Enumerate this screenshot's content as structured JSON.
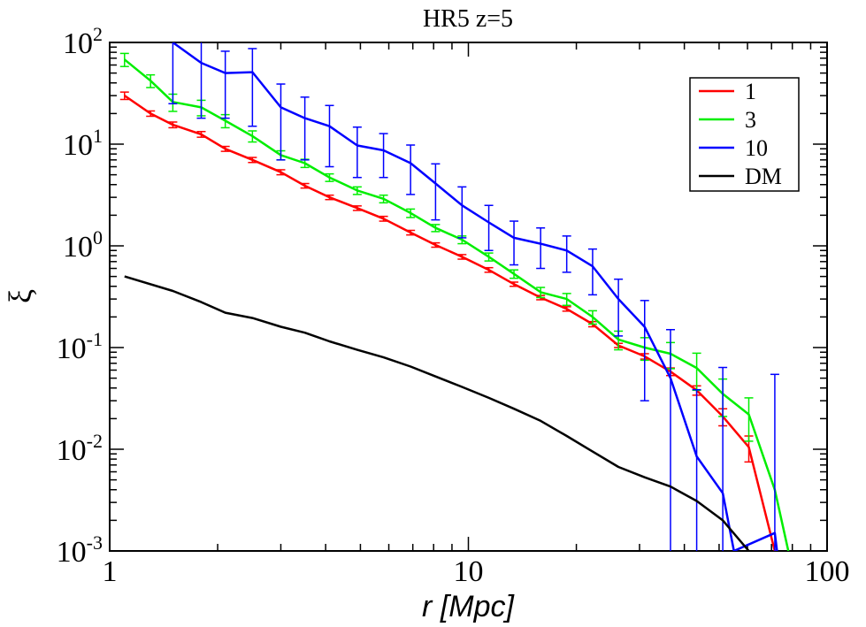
{
  "chart_data": {
    "type": "line",
    "title": "HR5 z=5",
    "xlabel": "r [Mpc]",
    "ylabel": "ξ",
    "xscale": "log",
    "yscale": "log",
    "xlim": [
      1,
      100
    ],
    "ylim": [
      0.001,
      100
    ],
    "x_ticks": [
      {
        "value": 1,
        "label": "1"
      },
      {
        "value": 10,
        "label": "10"
      },
      {
        "value": 100,
        "label": "100"
      }
    ],
    "y_ticks": [
      {
        "value": 0.001,
        "base": "10",
        "exp": "-3"
      },
      {
        "value": 0.01,
        "base": "10",
        "exp": "-2"
      },
      {
        "value": 0.1,
        "base": "10",
        "exp": "-1"
      },
      {
        "value": 1,
        "base": "10",
        "exp": "0"
      },
      {
        "value": 10,
        "base": "10",
        "exp": "1"
      },
      {
        "value": 100,
        "base": "10",
        "exp": "2"
      }
    ],
    "grid": false,
    "legend_position": "top-right",
    "series": [
      {
        "name": "1",
        "color": "#ff0000",
        "x": [
          1.1,
          1.3,
          1.5,
          1.8,
          2.1,
          2.5,
          3.0,
          3.5,
          4.1,
          4.9,
          5.8,
          6.9,
          8.1,
          9.6,
          11.4,
          13.4,
          15.9,
          18.8,
          22.2,
          26.2,
          31.0,
          36.6,
          43.3,
          51.2,
          60.5,
          71.5,
          80.0
        ],
        "y": [
          30,
          20,
          15.5,
          12.5,
          9,
          7,
          5.3,
          3.9,
          3.0,
          2.35,
          1.85,
          1.35,
          1.02,
          0.78,
          0.58,
          0.42,
          0.31,
          0.24,
          0.17,
          0.105,
          0.082,
          0.058,
          0.038,
          0.021,
          0.0105,
          0.001,
          0.0008
        ],
        "err": [
          2.5,
          1.2,
          1.0,
          0.8,
          0.5,
          0.4,
          0.3,
          0.2,
          0.15,
          0.12,
          0.1,
          0.07,
          0.05,
          0.04,
          0.03,
          0.02,
          0.015,
          0.012,
          0.01,
          0.005,
          0.005,
          0.005,
          0.004,
          0.004,
          0.003,
          0,
          0
        ]
      },
      {
        "name": "3",
        "color": "#00ee00",
        "x": [
          1.1,
          1.3,
          1.5,
          1.8,
          2.1,
          2.5,
          3.0,
          3.5,
          4.1,
          4.9,
          5.8,
          6.9,
          8.1,
          9.6,
          11.4,
          13.4,
          15.9,
          18.8,
          22.2,
          26.2,
          31.0,
          36.6,
          43.3,
          51.2,
          60.5,
          71.5,
          78.0
        ],
        "y": [
          68,
          42,
          26,
          23,
          17,
          12,
          7.8,
          6.5,
          4.7,
          3.5,
          2.9,
          2.1,
          1.5,
          1.15,
          0.78,
          0.53,
          0.35,
          0.3,
          0.2,
          0.12,
          0.1,
          0.087,
          0.063,
          0.035,
          0.022,
          0.004,
          0.001
        ],
        "err": [
          10,
          6,
          5,
          4,
          2.5,
          1.5,
          0.8,
          0.6,
          0.4,
          0.3,
          0.25,
          0.2,
          0.12,
          0.1,
          0.07,
          0.05,
          0.04,
          0.04,
          0.03,
          0.025,
          0.025,
          0.025,
          0.025,
          0.014,
          0.01,
          0,
          0
        ]
      },
      {
        "name": "10",
        "color": "#0000ff",
        "x": [
          1.5,
          1.8,
          2.1,
          2.5,
          3.0,
          3.5,
          4.1,
          4.9,
          5.8,
          6.9,
          8.1,
          9.6,
          11.4,
          13.4,
          15.9,
          18.8,
          22.2,
          26.2,
          31.0,
          36.6,
          43.3,
          51.2,
          55.0,
          71.5,
          72.5
        ],
        "y": [
          100,
          63,
          50,
          51,
          23,
          18,
          15,
          9.7,
          8.7,
          6.5,
          4.1,
          2.5,
          1.7,
          1.2,
          1.05,
          0.9,
          0.63,
          0.3,
          0.16,
          0.05,
          0.0085,
          0.0037,
          0.001,
          0.0015,
          0.001
        ],
        "err": [
          75,
          45,
          32,
          36,
          16,
          11,
          9,
          5,
          4,
          3.3,
          2.3,
          1.3,
          0.8,
          0.55,
          0.45,
          0.35,
          0.3,
          0.17,
          0.13,
          0.1,
          0.03,
          0.06,
          0,
          0.053,
          0
        ]
      },
      {
        "name": "DM",
        "color": "#000000",
        "x": [
          1.1,
          1.5,
          1.8,
          2.1,
          2.5,
          3.0,
          3.5,
          4.1,
          4.9,
          5.8,
          6.9,
          8.1,
          9.6,
          11.4,
          13.4,
          15.9,
          18.8,
          22.2,
          26.2,
          31.0,
          36.6,
          43.3,
          51.2,
          60.5
        ],
        "y": [
          0.5,
          0.36,
          0.28,
          0.22,
          0.195,
          0.16,
          0.14,
          0.115,
          0.095,
          0.08,
          0.065,
          0.052,
          0.041,
          0.032,
          0.025,
          0.019,
          0.0135,
          0.0095,
          0.0067,
          0.0053,
          0.0043,
          0.0031,
          0.002,
          0.001
        ],
        "err": []
      }
    ]
  }
}
